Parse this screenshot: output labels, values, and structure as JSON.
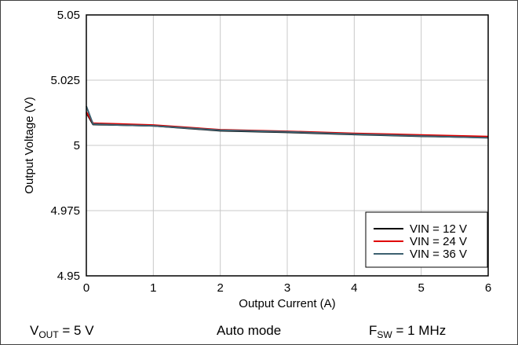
{
  "chart_data": {
    "type": "line",
    "title": "",
    "xlabel": "Output Current (A)",
    "ylabel": "Output Voltage (V)",
    "xlim": [
      0,
      6
    ],
    "ylim": [
      4.95,
      5.05
    ],
    "xticks": [
      0,
      1,
      2,
      3,
      4,
      5,
      6
    ],
    "yticks": [
      4.95,
      4.975,
      5,
      5.025,
      5.05
    ],
    "xtick_labels": [
      "0",
      "1",
      "2",
      "3",
      "4",
      "5",
      "6"
    ],
    "ytick_labels": [
      "4.95",
      "4.975",
      "5",
      "5.025",
      "5.05"
    ],
    "grid": true,
    "legend_position": "bottom-right",
    "series": [
      {
        "name": "VIN = 12 V",
        "color": "#000000",
        "x": [
          0,
          0.1,
          0.5,
          1,
          2,
          3,
          4,
          5,
          6
        ],
        "y": [
          5.0125,
          5.008,
          5.0078,
          5.0075,
          5.0056,
          5.005,
          5.0042,
          5.0035,
          5.003
        ]
      },
      {
        "name": "VIN = 24 V",
        "color": "#e00000",
        "x": [
          0,
          0.1,
          0.5,
          1,
          2,
          3,
          4,
          5,
          6
        ],
        "y": [
          5.0128,
          5.0085,
          5.0082,
          5.0078,
          5.006,
          5.0054,
          5.0046,
          5.004,
          5.0034
        ]
      },
      {
        "name": "VIN = 36 V",
        "color": "#3d6070",
        "x": [
          0,
          0.1,
          0.5,
          1,
          2,
          3,
          4,
          5,
          6
        ],
        "y": [
          5.015,
          5.0082,
          5.0078,
          5.0075,
          5.0058,
          5.0052,
          5.0043,
          5.0036,
          5.0029
        ]
      }
    ]
  },
  "footer": {
    "vout_label": "V",
    "vout_sub": "OUT",
    "vout_value": " = 5 V",
    "mode": "Auto mode",
    "fsw_label": "F",
    "fsw_sub": "SW",
    "fsw_value": " = 1 MHz"
  }
}
